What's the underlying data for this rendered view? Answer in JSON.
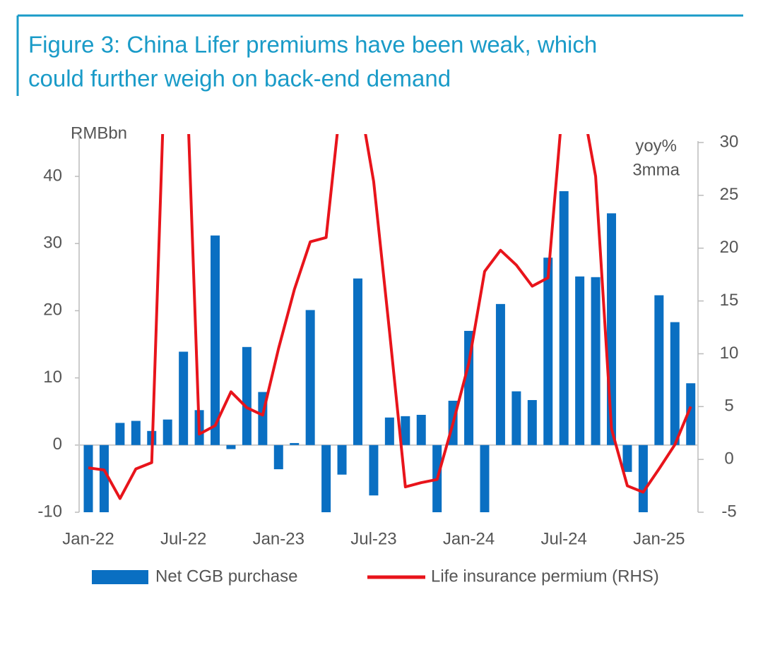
{
  "chart_data": {
    "type": "bar_line",
    "title": [
      "Figure 3: China Lifer premiums have been weak, which",
      "could further weigh on back-end demand"
    ],
    "y_label": "RMBbn",
    "y2_label": [
      "yoy%",
      "3mma"
    ],
    "categories": [
      "Jan-22",
      null,
      null,
      null,
      null,
      null,
      "Jul-22",
      null,
      null,
      null,
      null,
      null,
      "Jan-23",
      null,
      null,
      null,
      null,
      null,
      "Jul-23",
      null,
      null,
      null,
      null,
      null,
      "Jan-24",
      null,
      null,
      null,
      null,
      null,
      "Jul-24",
      null,
      null,
      null,
      null,
      null,
      "Jan-25",
      null,
      null
    ],
    "series": [
      {
        "name": "Net CGB purchase",
        "type": "bar",
        "color": "#0a6fc2",
        "values": [
          -10,
          -10,
          3.3,
          3.6,
          2.1,
          3.8,
          13.9,
          5.2,
          31.2,
          -0.6,
          14.6,
          7.9,
          -3.6,
          0.3,
          20.1,
          -10,
          -4.4,
          24.8,
          -7.5,
          4.1,
          4.3,
          4.5,
          -10,
          6.6,
          17.0,
          -10,
          21.0,
          8.0,
          6.7,
          27.9,
          37.8,
          25.1,
          25.0,
          34.5,
          -4.0,
          -10,
          22.3,
          18.3,
          9.2
        ]
      },
      {
        "name": "Life insurance permium (RHS)",
        "type": "line",
        "axis": "y2",
        "color": "#e8141b",
        "values": [
          -0.8,
          -1.0,
          -3.7,
          -0.9,
          -0.3,
          45,
          45,
          2.4,
          3.2,
          6.4,
          4.9,
          4.2,
          10.5,
          16.1,
          20.6,
          21.0,
          35,
          35,
          26.3,
          12.1,
          -2.6,
          -2.2,
          -1.9,
          3.4,
          9.1,
          17.8,
          19.8,
          18.4,
          16.4,
          17.2,
          35,
          35,
          26.8,
          2.9,
          -2.5,
          -3.1,
          -0.9,
          1.4,
          5.0
        ]
      }
    ],
    "ylim": [
      -10,
      46.3
    ],
    "yticks": [
      -10,
      0,
      10,
      20,
      30,
      40
    ],
    "y2lim": [
      -5,
      30.8
    ],
    "y2ticks": [
      -5,
      0,
      5,
      10,
      15,
      20,
      25,
      30
    ]
  }
}
